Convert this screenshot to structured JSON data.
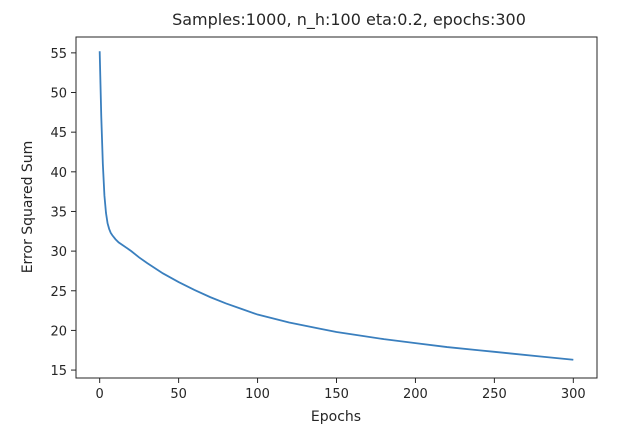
{
  "chart_data": {
    "type": "line",
    "title": "Samples:1000, n_h:100 eta:0.2, epochs:300",
    "xlabel": "Epochs",
    "ylabel": "Error Squared Sum",
    "xlim": [
      -15,
      315
    ],
    "ylim": [
      14,
      57
    ],
    "xticks": [
      0,
      50,
      100,
      150,
      200,
      250,
      300
    ],
    "yticks": [
      15,
      20,
      25,
      30,
      35,
      40,
      45,
      50,
      55
    ],
    "grid": false,
    "line_color": "#3a7fbe",
    "series": [
      {
        "x": [
          0,
          1,
          2,
          3,
          4,
          5,
          6,
          7,
          8,
          10,
          12,
          15,
          20,
          25,
          30,
          40,
          50,
          60,
          70,
          80,
          90,
          100,
          120,
          140,
          150,
          160,
          180,
          200,
          220,
          240,
          250,
          260,
          280,
          300
        ],
        "values": [
          55.2,
          47.0,
          41.0,
          37.0,
          34.8,
          33.5,
          32.8,
          32.3,
          32.0,
          31.5,
          31.1,
          30.7,
          30.0,
          29.2,
          28.5,
          27.2,
          26.1,
          25.1,
          24.2,
          23.4,
          22.7,
          22.0,
          21.0,
          20.2,
          19.8,
          19.5,
          18.9,
          18.4,
          17.9,
          17.5,
          17.3,
          17.1,
          16.7,
          16.3
        ]
      }
    ]
  }
}
